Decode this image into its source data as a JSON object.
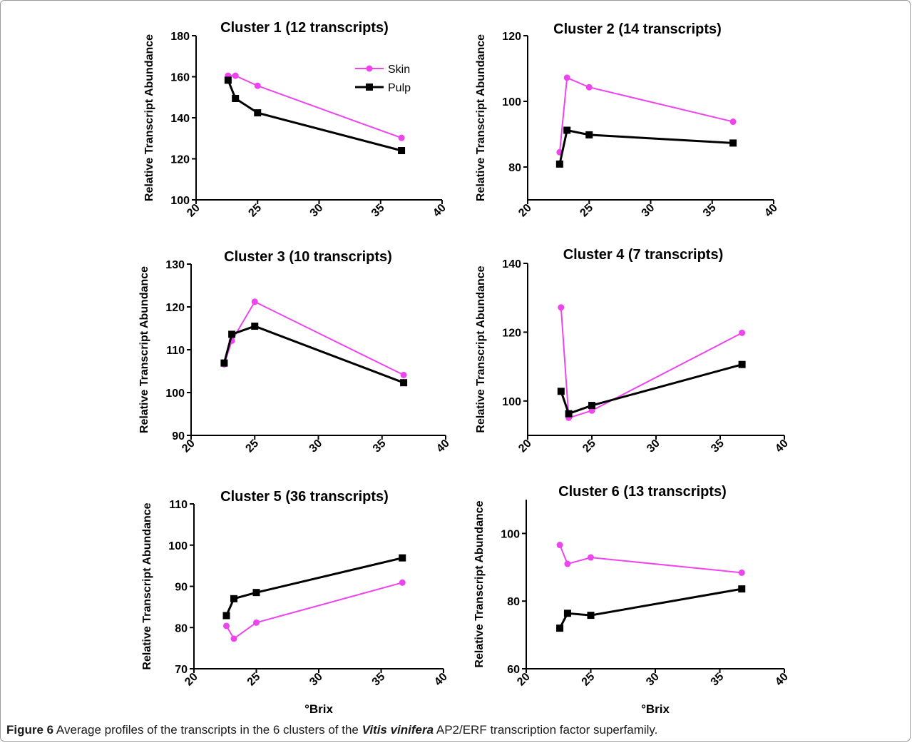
{
  "caption": {
    "label": "Figure 6",
    "text_before": " Average profiles of the transcripts in the 6 clusters of the ",
    "italic": "Vitis vinifera",
    "text_after": " AP2/ERF transcription factor superfamily."
  },
  "colors": {
    "skin": "#ee44ee",
    "pulp": "#000000"
  },
  "chart_data": [
    {
      "type": "line",
      "title": "Cluster 1 (12 transcripts)",
      "xlabel": "",
      "ylabel": "Relative Transcript Abundance",
      "xlim": [
        20,
        40
      ],
      "xticks": [
        "20",
        "25",
        "30",
        "35",
        "40"
      ],
      "ylim": [
        100,
        180
      ],
      "yticks": [
        "100",
        "120",
        "140",
        "160",
        "180"
      ],
      "legend": "top-right",
      "series": [
        {
          "name": "Skin",
          "marker": "circle",
          "x": [
            22.6,
            23.2,
            25.0,
            36.7
          ],
          "y": [
            160.5,
            160.5,
            155.6,
            130.2
          ]
        },
        {
          "name": "Pulp",
          "marker": "square",
          "x": [
            22.6,
            23.2,
            25.0,
            36.7
          ],
          "y": [
            158.3,
            149.4,
            142.4,
            124.0
          ]
        }
      ]
    },
    {
      "type": "line",
      "title": "Cluster 2 (14 transcripts)",
      "xlabel": "",
      "ylabel": "Relative Transcript Abundance",
      "xlim": [
        20,
        40
      ],
      "xticks": [
        "20",
        "25",
        "30",
        "35",
        "40"
      ],
      "ylim": [
        70,
        120
      ],
      "yticks": [
        "80",
        "100",
        "120"
      ],
      "series": [
        {
          "name": "Skin",
          "marker": "circle",
          "x": [
            22.6,
            23.2,
            25.0,
            36.7
          ],
          "y": [
            84.5,
            107.2,
            104.3,
            93.8
          ]
        },
        {
          "name": "Pulp",
          "marker": "square",
          "x": [
            22.6,
            23.2,
            25.0,
            36.7
          ],
          "y": [
            80.9,
            91.2,
            89.8,
            87.3
          ]
        }
      ]
    },
    {
      "type": "line",
      "title": "Cluster 3 (10 transcripts)",
      "xlabel": "",
      "ylabel": "Relative Transcript Abundance",
      "xlim": [
        20,
        40
      ],
      "xticks": [
        "20",
        "25",
        "30",
        "35",
        "40"
      ],
      "ylim": [
        90,
        130
      ],
      "yticks": [
        "90",
        "100",
        "110",
        "120",
        "130"
      ],
      "series": [
        {
          "name": "Skin",
          "marker": "circle",
          "x": [
            22.6,
            23.2,
            25.0,
            36.7
          ],
          "y": [
            106.6,
            112.1,
            121.2,
            104.1
          ]
        },
        {
          "name": "Pulp",
          "marker": "square",
          "x": [
            22.6,
            23.2,
            25.0,
            36.7
          ],
          "y": [
            106.9,
            113.6,
            115.5,
            102.3
          ]
        }
      ]
    },
    {
      "type": "line",
      "title": "Cluster 4 (7 transcripts)",
      "xlabel": "",
      "ylabel": "Relative Transcript Abundance",
      "xlim": [
        20,
        40
      ],
      "xticks": [
        "20",
        "25",
        "30",
        "35",
        "40"
      ],
      "ylim": [
        90,
        140
      ],
      "yticks": [
        "100",
        "120",
        "140"
      ],
      "series": [
        {
          "name": "Skin",
          "marker": "circle",
          "x": [
            22.6,
            23.2,
            25.0,
            36.7
          ],
          "y": [
            127.2,
            95.1,
            97.2,
            119.8
          ]
        },
        {
          "name": "Pulp",
          "marker": "square",
          "x": [
            22.6,
            23.2,
            25.0,
            36.7
          ],
          "y": [
            102.8,
            96.3,
            98.7,
            110.6
          ]
        }
      ]
    },
    {
      "type": "line",
      "title": "Cluster 5 (36 transcripts)",
      "xlabel": "°Brix",
      "ylabel": "Relative Transcript Abundance",
      "xlim": [
        20,
        40
      ],
      "xticks": [
        "20",
        "25",
        "30",
        "35",
        "40"
      ],
      "ylim": [
        70,
        110
      ],
      "yticks": [
        "70",
        "80",
        "90",
        "100",
        "110"
      ],
      "series": [
        {
          "name": "Skin",
          "marker": "circle",
          "x": [
            22.6,
            23.2,
            25.0,
            36.7
          ],
          "y": [
            80.4,
            77.3,
            81.2,
            90.9
          ]
        },
        {
          "name": "Pulp",
          "marker": "square",
          "x": [
            22.6,
            23.2,
            25.0,
            36.7
          ],
          "y": [
            82.9,
            87.0,
            88.5,
            96.9
          ]
        }
      ]
    },
    {
      "type": "line",
      "title": "Cluster 6 (13 transcripts)",
      "xlabel": "°Brix",
      "ylabel": "Relative Transcript Abundance",
      "xlim": [
        20,
        40
      ],
      "xticks": [
        "20",
        "25",
        "30",
        "35",
        "40"
      ],
      "ylim": [
        60,
        110
      ],
      "yticks": [
        "60",
        "80",
        "100"
      ],
      "series": [
        {
          "name": "Skin",
          "marker": "circle",
          "x": [
            22.6,
            23.2,
            25.0,
            36.7
          ],
          "y": [
            96.6,
            91.0,
            92.9,
            88.4
          ]
        },
        {
          "name": "Pulp",
          "marker": "square",
          "x": [
            22.6,
            23.2,
            25.0,
            36.7
          ],
          "y": [
            72.0,
            76.4,
            75.8,
            83.6
          ]
        }
      ]
    }
  ]
}
